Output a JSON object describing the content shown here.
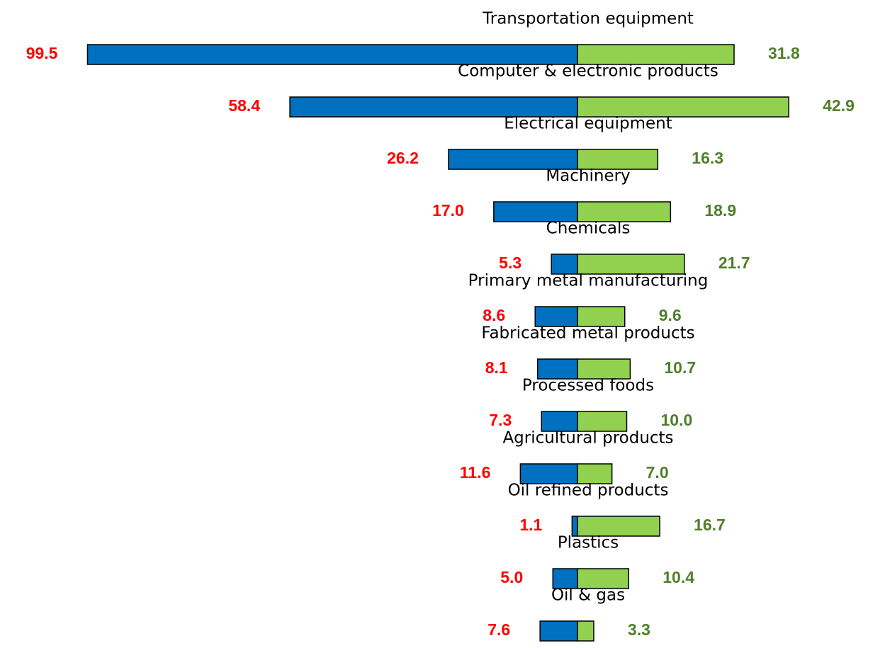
{
  "chart_data": {
    "type": "bar",
    "categories": [
      "Transportation equipment",
      "Computer & electronic products",
      "Electrical equipment",
      "Machinery",
      "Chemicals",
      "Primary metal manufacturing",
      "Fabricated metal products",
      "Processed foods",
      "Agricultural products",
      "Oil refined products",
      "Plastics",
      "Oil & gas"
    ],
    "series": [
      {
        "color": "#0070c0",
        "label_color": "#ff0000",
        "side": "left",
        "values": [
          99.5,
          58.4,
          26.2,
          17.0,
          5.3,
          8.6,
          8.1,
          7.3,
          11.6,
          1.1,
          5.0,
          7.6
        ],
        "value_labels": [
          "99.5",
          "58.4",
          "26.2",
          "17.0",
          "5.3",
          "8.6",
          "8.1",
          "7.3",
          "11.6",
          "1.1",
          "5.0",
          "7.6"
        ]
      },
      {
        "color": "#92d050",
        "label_color": "#4f7f2a",
        "side": "right",
        "values": [
          31.8,
          42.9,
          16.3,
          18.9,
          21.7,
          9.6,
          10.7,
          10.0,
          7.0,
          16.7,
          10.4,
          3.3
        ],
        "value_labels": [
          "31.8",
          "42.9",
          "16.3",
          "18.9",
          "21.7",
          "9.6",
          "10.7",
          "10.0",
          "7.0",
          "16.7",
          "10.4",
          "3.3"
        ]
      }
    ]
  }
}
